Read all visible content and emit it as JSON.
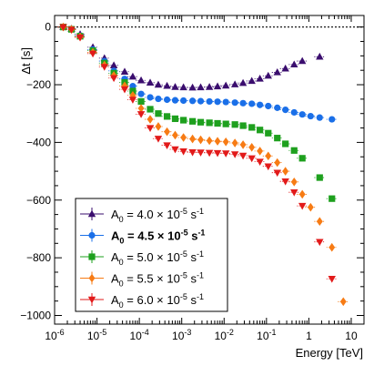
{
  "chart_data": {
    "type": "scatter",
    "title": "",
    "xlabel": "Energy [TeV]",
    "ylabel": "Δt [s]",
    "xscale": "log",
    "xlim": [
      1e-06,
      20
    ],
    "ylim": [
      -1030,
      40
    ],
    "x_ticks": [
      {
        "value": 1e-06,
        "base": "10",
        "exp": "-6"
      },
      {
        "value": 1e-05,
        "base": "10",
        "exp": "-5"
      },
      {
        "value": 0.0001,
        "base": "10",
        "exp": "-4"
      },
      {
        "value": 0.001,
        "base": "10",
        "exp": "-3"
      },
      {
        "value": 0.01,
        "base": "10",
        "exp": "-2"
      },
      {
        "value": 0.1,
        "base": "10",
        "exp": "-1"
      },
      {
        "value": 1,
        "base": "1",
        "exp": ""
      },
      {
        "value": 10,
        "base": "10",
        "exp": ""
      }
    ],
    "y_ticks": [
      {
        "value": 0,
        "label": "0"
      },
      {
        "value": -200,
        "label": "−200"
      },
      {
        "value": -400,
        "label": "−400"
      },
      {
        "value": -600,
        "label": "−600"
      },
      {
        "value": -800,
        "label": "−800"
      },
      {
        "value": -1000,
        "label": "−1000"
      }
    ],
    "reference_line": {
      "y": 0,
      "style": "dotted"
    },
    "legend_position": "bottom-left",
    "series": [
      {
        "name": "A0 = 4.0 × 10-5 s-1",
        "legend": {
          "pre": "A",
          "sub": "0",
          "mid": " = 4.0 × 10",
          "sup1": "-5",
          "post": " s",
          "sup2": "-1",
          "bold": false
        },
        "color": "#3a0d6e",
        "marker": "triangle-up",
        "points": [
          [
            1.6e-06,
            0
          ],
          [
            2.5e-06,
            -6
          ],
          [
            4e-06,
            -25
          ],
          [
            8e-06,
            -70
          ],
          [
            1.5e-05,
            -108
          ],
          [
            2.5e-05,
            -133
          ],
          [
            4.5e-05,
            -155
          ],
          [
            7e-05,
            -172
          ],
          [
            0.00011,
            -185
          ],
          [
            0.00018,
            -193
          ],
          [
            0.00028,
            -200
          ],
          [
            0.00045,
            -204
          ],
          [
            0.0007,
            -208
          ],
          [
            0.0011,
            -209
          ],
          [
            0.0018,
            -210
          ],
          [
            0.0028,
            -209
          ],
          [
            0.0045,
            -208
          ],
          [
            0.007,
            -206
          ],
          [
            0.011,
            -203
          ],
          [
            0.018,
            -199
          ],
          [
            0.028,
            -194
          ],
          [
            0.045,
            -187
          ],
          [
            0.07,
            -179
          ],
          [
            0.11,
            -169
          ],
          [
            0.18,
            -157
          ],
          [
            0.28,
            -144
          ],
          [
            0.45,
            -130
          ],
          [
            0.7,
            -118
          ],
          [
            1.8,
            -103
          ]
        ]
      },
      {
        "name": "A0 = 4.5 × 10-5 s-1",
        "legend": {
          "pre": "A",
          "sub": "0",
          "mid": " = 4.5 × 10",
          "sup1": "-5",
          "post": " s",
          "sup2": "-1",
          "bold": true
        },
        "color": "#1a6fe8",
        "marker": "circle",
        "points": [
          [
            1.6e-06,
            0
          ],
          [
            2.5e-06,
            -7
          ],
          [
            4e-06,
            -30
          ],
          [
            8e-06,
            -78
          ],
          [
            1.5e-05,
            -118
          ],
          [
            2.5e-05,
            -152
          ],
          [
            4.5e-05,
            -180
          ],
          [
            7e-05,
            -205
          ],
          [
            0.00011,
            -232
          ],
          [
            0.00018,
            -244
          ],
          [
            0.00028,
            -249
          ],
          [
            0.00045,
            -252
          ],
          [
            0.0007,
            -254
          ],
          [
            0.0011,
            -255
          ],
          [
            0.0018,
            -256
          ],
          [
            0.0028,
            -257
          ],
          [
            0.0045,
            -258
          ],
          [
            0.007,
            -259
          ],
          [
            0.011,
            -260
          ],
          [
            0.018,
            -262
          ],
          [
            0.028,
            -264
          ],
          [
            0.045,
            -266
          ],
          [
            0.07,
            -270
          ],
          [
            0.11,
            -274
          ],
          [
            0.18,
            -280
          ],
          [
            0.28,
            -287
          ],
          [
            0.45,
            -296
          ],
          [
            0.7,
            -303
          ],
          [
            1.1,
            -309
          ],
          [
            1.8,
            -314
          ],
          [
            3.5,
            -320
          ]
        ]
      },
      {
        "name": "A0 = 5.0 × 10-5 s-1",
        "legend": {
          "pre": "A",
          "sub": "0",
          "mid": " = 5.0 × 10",
          "sup1": "-5",
          "post": " s",
          "sup2": "-1",
          "bold": false
        },
        "color": "#1ea01e",
        "marker": "square",
        "points": [
          [
            1.6e-06,
            0
          ],
          [
            2.5e-06,
            -8
          ],
          [
            4e-06,
            -32
          ],
          [
            8e-06,
            -82
          ],
          [
            1.5e-05,
            -125
          ],
          [
            2.5e-05,
            -160
          ],
          [
            4.5e-05,
            -192
          ],
          [
            7e-05,
            -222
          ],
          [
            0.00011,
            -258
          ],
          [
            0.00018,
            -285
          ],
          [
            0.00028,
            -300
          ],
          [
            0.00045,
            -310
          ],
          [
            0.0007,
            -318
          ],
          [
            0.0011,
            -323
          ],
          [
            0.0018,
            -327
          ],
          [
            0.0028,
            -330
          ],
          [
            0.0045,
            -332
          ],
          [
            0.007,
            -334
          ],
          [
            0.011,
            -336
          ],
          [
            0.018,
            -338
          ],
          [
            0.028,
            -342
          ],
          [
            0.045,
            -348
          ],
          [
            0.07,
            -357
          ],
          [
            0.11,
            -368
          ],
          [
            0.18,
            -385
          ],
          [
            0.28,
            -405
          ],
          [
            0.45,
            -428
          ],
          [
            0.7,
            -455
          ],
          [
            1.8,
            -522
          ],
          [
            3.5,
            -595
          ]
        ]
      },
      {
        "name": "A0 = 5.5 × 10-5 s-1",
        "legend": {
          "pre": "A",
          "sub": "0",
          "mid": " = 5.5 × 10",
          "sup1": "-5",
          "post": " s",
          "sup2": "-1",
          "bold": false
        },
        "color": "#f77b14",
        "marker": "diamond",
        "points": [
          [
            1.6e-06,
            0
          ],
          [
            2.5e-06,
            -8
          ],
          [
            4e-06,
            -34
          ],
          [
            8e-06,
            -88
          ],
          [
            1.5e-05,
            -132
          ],
          [
            2.5e-05,
            -168
          ],
          [
            4.5e-05,
            -204
          ],
          [
            7e-05,
            -237
          ],
          [
            0.00011,
            -282
          ],
          [
            0.00018,
            -320
          ],
          [
            0.00028,
            -345
          ],
          [
            0.00045,
            -363
          ],
          [
            0.0007,
            -375
          ],
          [
            0.0011,
            -383
          ],
          [
            0.0018,
            -388
          ],
          [
            0.0028,
            -391
          ],
          [
            0.0045,
            -394
          ],
          [
            0.007,
            -396
          ],
          [
            0.011,
            -398
          ],
          [
            0.018,
            -402
          ],
          [
            0.028,
            -408
          ],
          [
            0.045,
            -417
          ],
          [
            0.07,
            -430
          ],
          [
            0.11,
            -447
          ],
          [
            0.18,
            -470
          ],
          [
            0.28,
            -500
          ],
          [
            0.45,
            -537
          ],
          [
            0.7,
            -580
          ],
          [
            1.1,
            -625
          ],
          [
            1.8,
            -674
          ],
          [
            3.5,
            -764
          ],
          [
            6.5,
            -952
          ]
        ]
      },
      {
        "name": "A0 = 6.0 × 10-5 s-1",
        "legend": {
          "pre": "A",
          "sub": "0",
          "mid": " = 6.0 × 10",
          "sup1": "-5",
          "post": " s",
          "sup2": "-1",
          "bold": false
        },
        "color": "#e21a1a",
        "marker": "triangle-down",
        "points": [
          [
            1.6e-06,
            0
          ],
          [
            2.5e-06,
            -9
          ],
          [
            4e-06,
            -36
          ],
          [
            8e-06,
            -92
          ],
          [
            1.5e-05,
            -138
          ],
          [
            2.5e-05,
            -177
          ],
          [
            4.5e-05,
            -216
          ],
          [
            7e-05,
            -252
          ],
          [
            0.00011,
            -302
          ],
          [
            0.00018,
            -350
          ],
          [
            0.00028,
            -387
          ],
          [
            0.00045,
            -410
          ],
          [
            0.0007,
            -424
          ],
          [
            0.0011,
            -431
          ],
          [
            0.0018,
            -434
          ],
          [
            0.0028,
            -435
          ],
          [
            0.0045,
            -436
          ],
          [
            0.007,
            -437
          ],
          [
            0.011,
            -438
          ],
          [
            0.018,
            -441
          ],
          [
            0.028,
            -446
          ],
          [
            0.045,
            -455
          ],
          [
            0.07,
            -467
          ],
          [
            0.11,
            -483
          ],
          [
            0.18,
            -505
          ],
          [
            0.28,
            -535
          ],
          [
            0.45,
            -573
          ],
          [
            0.7,
            -620
          ],
          [
            1.8,
            -745
          ],
          [
            3.5,
            -873
          ]
        ]
      }
    ]
  }
}
